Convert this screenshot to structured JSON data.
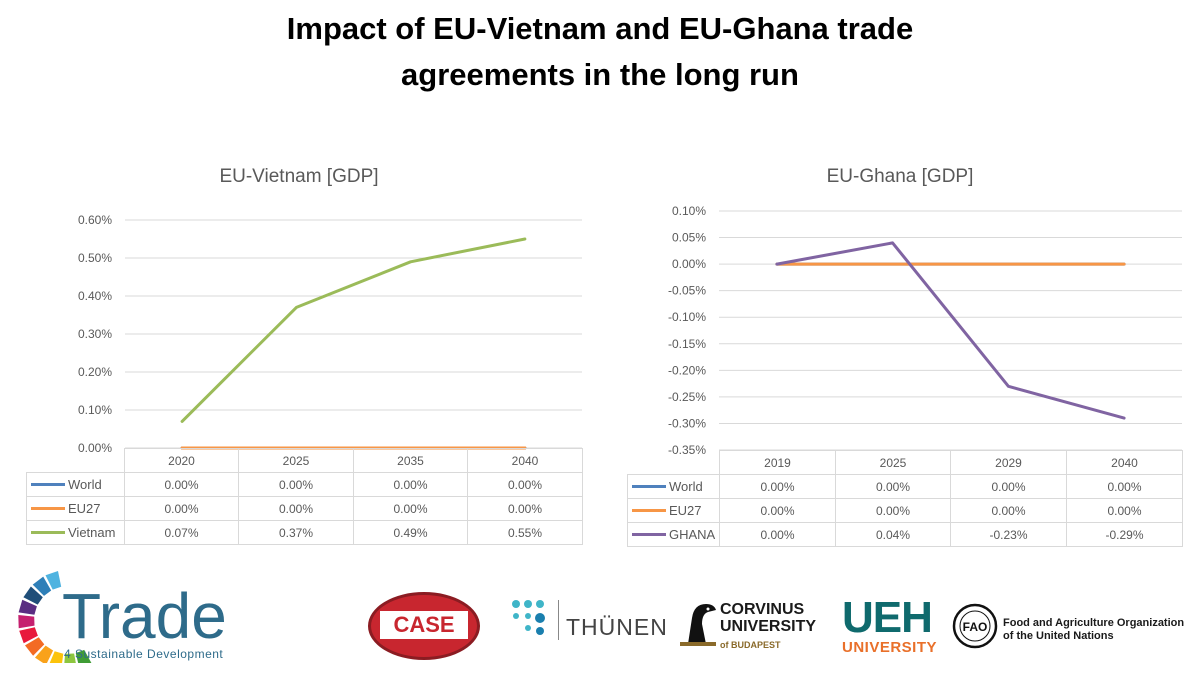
{
  "title_line1": "Impact of EU-Vietnam and EU-Ghana trade",
  "title_line2": "agreements in the long run",
  "chart_data": [
    {
      "type": "line",
      "title": "EU-Vietnam [GDP]",
      "categories": [
        "2020",
        "2025",
        "2035",
        "2040"
      ],
      "y_ticks": [
        "0.60%",
        "0.50%",
        "0.40%",
        "0.30%",
        "0.20%",
        "0.10%",
        "0.00%"
      ],
      "ylim": [
        0,
        0.6
      ],
      "grid": true,
      "legend": "data-table",
      "series": [
        {
          "name": "World",
          "color": "#4f81bd",
          "values": [
            0.0,
            0.0,
            0.0,
            0.0
          ],
          "labels": [
            "0.00%",
            "0.00%",
            "0.00%",
            "0.00%"
          ]
        },
        {
          "name": "EU27",
          "color": "#f79646",
          "values": [
            0.0,
            0.0,
            0.0,
            0.0
          ],
          "labels": [
            "0.00%",
            "0.00%",
            "0.00%",
            "0.00%"
          ]
        },
        {
          "name": "Vietnam",
          "color": "#9bbb59",
          "values": [
            0.07,
            0.37,
            0.49,
            0.55
          ],
          "labels": [
            "0.07%",
            "0.37%",
            "0.49%",
            "0.55%"
          ]
        }
      ]
    },
    {
      "type": "line",
      "title": "EU-Ghana [GDP]",
      "categories": [
        "2019",
        "2025",
        "2029",
        "2040"
      ],
      "y_ticks": [
        "0.10%",
        "0.05%",
        "0.00%",
        "-0.05%",
        "-0.10%",
        "-0.15%",
        "-0.20%",
        "-0.25%",
        "-0.30%",
        "-0.35%"
      ],
      "ylim": [
        -0.35,
        0.1
      ],
      "grid": true,
      "legend": "data-table",
      "series": [
        {
          "name": "World",
          "color": "#4f81bd",
          "values": [
            0.0,
            0.0,
            0.0,
            0.0
          ],
          "labels": [
            "0.00%",
            "0.00%",
            "0.00%",
            "0.00%"
          ]
        },
        {
          "name": "EU27",
          "color": "#f79646",
          "values": [
            0.0,
            0.0,
            0.0,
            0.0
          ],
          "labels": [
            "0.00%",
            "0.00%",
            "0.00%",
            "0.00%"
          ]
        },
        {
          "name": "GHANA",
          "color": "#8064a2",
          "values": [
            0.0,
            0.04,
            -0.23,
            -0.29
          ],
          "labels": [
            "0.00%",
            "0.04%",
            "-0.23%",
            "-0.29%"
          ]
        }
      ]
    }
  ],
  "logos": {
    "trade_word": "Trade",
    "trade_sub": "4 Sustainable Development",
    "case": "CASE",
    "thunen": "THÜNEN",
    "corvinus_line1": "CORVINUS",
    "corvinus_line2": "UNIVERSITY",
    "corvinus_sub": "of BUDAPEST",
    "ueh": "UEH",
    "ueh_sub": "UNIVERSITY",
    "fao_line1": "Food and Agriculture Organization",
    "fao_line2": "of the United Nations"
  }
}
